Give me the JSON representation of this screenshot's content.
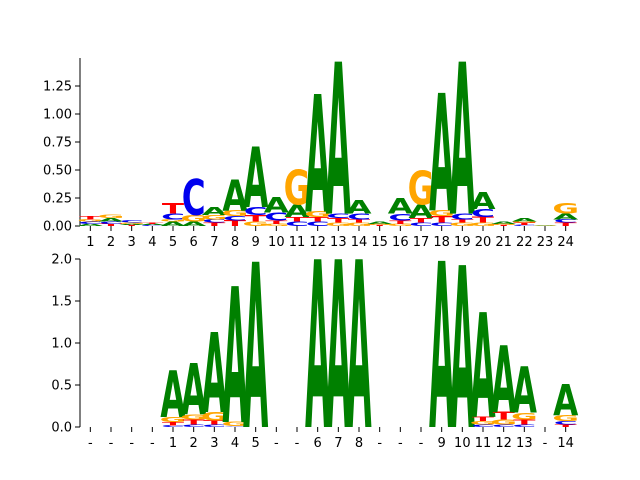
{
  "chart_data": [
    {
      "type": "sequence-logo",
      "panel": "top",
      "yticks": [
        "0.00",
        "0.25",
        "0.50",
        "0.75",
        "1.00",
        "1.25"
      ],
      "ylim": [
        0,
        1.5
      ],
      "grid": false,
      "letter_colors": {
        "A": "#008000",
        "C": "#0000ee",
        "G": "#ffa500",
        "T": "#ff0000"
      },
      "positions": [
        {
          "label": "1",
          "stack": [
            [
              "A",
              0.02
            ],
            [
              "C",
              0.02
            ],
            [
              "G",
              0.02
            ],
            [
              "T",
              0.03
            ]
          ]
        },
        {
          "label": "2",
          "stack": [
            [
              "T",
              0.02
            ],
            [
              "C",
              0.02
            ],
            [
              "A",
              0.03
            ],
            [
              "G",
              0.03
            ]
          ]
        },
        {
          "label": "3",
          "stack": [
            [
              "T",
              0.01
            ],
            [
              "A",
              0.01
            ],
            [
              "G",
              0.01
            ],
            [
              "C",
              0.02
            ]
          ]
        },
        {
          "label": "4",
          "stack": [
            [
              "C",
              0.01
            ],
            [
              "A",
              0.01
            ],
            [
              "T",
              0.01
            ]
          ]
        },
        {
          "label": "5",
          "stack": [
            [
              "A",
              0.04
            ],
            [
              "G",
              0.02
            ],
            [
              "C",
              0.05
            ],
            [
              "T",
              0.09
            ]
          ]
        },
        {
          "label": "6",
          "stack": [
            [
              "A",
              0.04
            ],
            [
              "G",
              0.06
            ],
            [
              "C",
              0.32
            ]
          ]
        },
        {
          "label": "7",
          "stack": [
            [
              "T",
              0.03
            ],
            [
              "C",
              0.03
            ],
            [
              "G",
              0.04
            ],
            [
              "A",
              0.07
            ]
          ]
        },
        {
          "label": "8",
          "stack": [
            [
              "T",
              0.05
            ],
            [
              "C",
              0.04
            ],
            [
              "G",
              0.05
            ],
            [
              "A",
              0.28
            ]
          ]
        },
        {
          "label": "9",
          "stack": [
            [
              "G",
              0.04
            ],
            [
              "T",
              0.06
            ],
            [
              "C",
              0.07
            ],
            [
              "A",
              0.54
            ]
          ]
        },
        {
          "label": "10",
          "stack": [
            [
              "G",
              0.02
            ],
            [
              "T",
              0.03
            ],
            [
              "C",
              0.07
            ],
            [
              "A",
              0.14
            ]
          ]
        },
        {
          "label": "11",
          "stack": [
            [
              "C",
              0.04
            ],
            [
              "T",
              0.04
            ],
            [
              "A",
              0.11
            ],
            [
              "G",
              0.31
            ]
          ]
        },
        {
          "label": "12",
          "stack": [
            [
              "C",
              0.04
            ],
            [
              "T",
              0.04
            ],
            [
              "G",
              0.05
            ],
            [
              "A",
              1.05
            ]
          ]
        },
        {
          "label": "13",
          "stack": [
            [
              "G",
              0.03
            ],
            [
              "T",
              0.04
            ],
            [
              "C",
              0.04
            ],
            [
              "A",
              1.36
            ]
          ]
        },
        {
          "label": "14",
          "stack": [
            [
              "G",
              0.03
            ],
            [
              "T",
              0.03
            ],
            [
              "C",
              0.05
            ],
            [
              "A",
              0.12
            ]
          ]
        },
        {
          "label": "15",
          "stack": [
            [
              "T",
              0.01
            ],
            [
              "G",
              0.01
            ],
            [
              "A",
              0.02
            ]
          ]
        },
        {
          "label": "16",
          "stack": [
            [
              "G",
              0.02
            ],
            [
              "T",
              0.03
            ],
            [
              "C",
              0.06
            ],
            [
              "A",
              0.14
            ]
          ]
        },
        {
          "label": "17",
          "stack": [
            [
              "C",
              0.03
            ],
            [
              "T",
              0.04
            ],
            [
              "A",
              0.12
            ],
            [
              "G",
              0.3
            ]
          ]
        },
        {
          "label": "18",
          "stack": [
            [
              "C",
              0.03
            ],
            [
              "T",
              0.06
            ],
            [
              "G",
              0.05
            ],
            [
              "A",
              1.05
            ]
          ]
        },
        {
          "label": "19",
          "stack": [
            [
              "G",
              0.03
            ],
            [
              "T",
              0.03
            ],
            [
              "C",
              0.05
            ],
            [
              "A",
              1.36
            ]
          ]
        },
        {
          "label": "20",
          "stack": [
            [
              "G",
              0.03
            ],
            [
              "T",
              0.05
            ],
            [
              "C",
              0.07
            ],
            [
              "A",
              0.15
            ]
          ]
        },
        {
          "label": "21",
          "stack": [
            [
              "T",
              0.01
            ],
            [
              "G",
              0.01
            ],
            [
              "A",
              0.02
            ]
          ]
        },
        {
          "label": "22",
          "stack": [
            [
              "C",
              0.01
            ],
            [
              "T",
              0.02
            ],
            [
              "G",
              0.01
            ],
            [
              "A",
              0.03
            ]
          ]
        },
        {
          "label": "23",
          "stack": [
            [
              "A",
              0.005
            ],
            [
              "G",
              0.005
            ]
          ]
        },
        {
          "label": "24",
          "stack": [
            [
              "T",
              0.03
            ],
            [
              "C",
              0.03
            ],
            [
              "A",
              0.05
            ],
            [
              "G",
              0.09
            ]
          ]
        }
      ]
    },
    {
      "type": "sequence-logo",
      "panel": "bottom",
      "yticks": [
        "0.0",
        "0.5",
        "1.0",
        "1.5",
        "2.0"
      ],
      "ylim": [
        0,
        2.0
      ],
      "grid": false,
      "letter_colors": {
        "A": "#008000",
        "C": "#0000ee",
        "G": "#ffa500",
        "T": "#ff0000"
      },
      "positions": [
        {
          "label": "-",
          "stack": []
        },
        {
          "label": "-",
          "stack": []
        },
        {
          "label": "-",
          "stack": []
        },
        {
          "label": "-",
          "stack": []
        },
        {
          "label": "1",
          "stack": [
            [
              "C",
              0.02
            ],
            [
              "T",
              0.04
            ],
            [
              "G",
              0.06
            ],
            [
              "A",
              0.56
            ]
          ]
        },
        {
          "label": "2",
          "stack": [
            [
              "C",
              0.03
            ],
            [
              "T",
              0.06
            ],
            [
              "G",
              0.06
            ],
            [
              "A",
              0.61
            ]
          ]
        },
        {
          "label": "3",
          "stack": [
            [
              "C",
              0.03
            ],
            [
              "T",
              0.05
            ],
            [
              "G",
              0.1
            ],
            [
              "A",
              0.95
            ]
          ]
        },
        {
          "label": "4",
          "stack": [
            [
              "C",
              0.01
            ],
            [
              "G",
              0.05
            ],
            [
              "A",
              1.62
            ]
          ]
        },
        {
          "label": "5",
          "stack": [
            [
              "A",
              1.97
            ]
          ]
        },
        {
          "label": "-",
          "stack": []
        },
        {
          "label": "-",
          "stack": []
        },
        {
          "label": "6",
          "stack": [
            [
              "A",
              2.0
            ]
          ]
        },
        {
          "label": "7",
          "stack": [
            [
              "A",
              2.0
            ]
          ]
        },
        {
          "label": "8",
          "stack": [
            [
              "A",
              2.0
            ]
          ]
        },
        {
          "label": "-",
          "stack": []
        },
        {
          "label": "-",
          "stack": []
        },
        {
          "label": "-",
          "stack": []
        },
        {
          "label": "9",
          "stack": [
            [
              "A",
              1.98
            ]
          ]
        },
        {
          "label": "10",
          "stack": [
            [
              "A",
              1.93
            ]
          ]
        },
        {
          "label": "11",
          "stack": [
            [
              "C",
              0.03
            ],
            [
              "G",
              0.04
            ],
            [
              "T",
              0.05
            ],
            [
              "A",
              1.25
            ]
          ]
        },
        {
          "label": "12",
          "stack": [
            [
              "C",
              0.03
            ],
            [
              "G",
              0.06
            ],
            [
              "T",
              0.09
            ],
            [
              "A",
              0.8
            ]
          ]
        },
        {
          "label": "13",
          "stack": [
            [
              "C",
              0.03
            ],
            [
              "T",
              0.06
            ],
            [
              "G",
              0.08
            ],
            [
              "A",
              0.55
            ]
          ]
        },
        {
          "label": "-",
          "stack": []
        },
        {
          "label": "14",
          "stack": [
            [
              "T",
              0.03
            ],
            [
              "C",
              0.04
            ],
            [
              "G",
              0.07
            ],
            [
              "A",
              0.37
            ]
          ]
        }
      ]
    }
  ]
}
